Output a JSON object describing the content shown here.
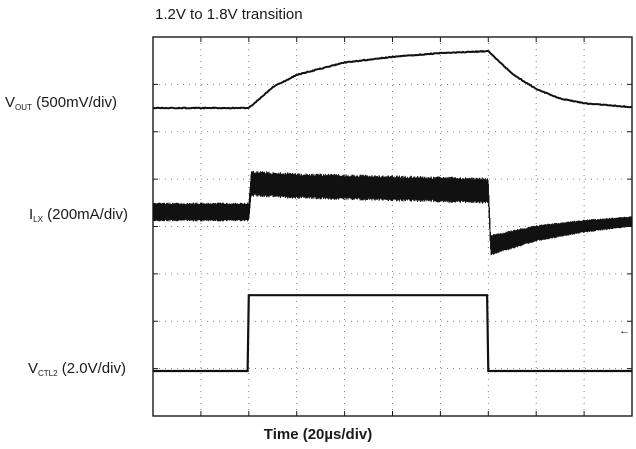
{
  "chart_data": {
    "type": "line",
    "title": "1.2V to 1.8V transition",
    "xlabel": "Time (20µs/div)",
    "ylabel": "",
    "grid": true,
    "divisions": {
      "x": 10,
      "y": 8
    },
    "x": [
      0,
      20,
      40,
      60,
      80,
      100,
      120,
      140,
      160,
      180,
      200
    ],
    "series": [
      {
        "name_main": "V",
        "name_sub": "OUT",
        "name_scale": "(500mV/div)",
        "unit": "V",
        "x": [
          0,
          40,
          50,
          60,
          80,
          100,
          120,
          140,
          150,
          160,
          170,
          180,
          200
        ],
        "values": [
          1.2,
          1.2,
          1.42,
          1.55,
          1.68,
          1.74,
          1.78,
          1.8,
          1.56,
          1.4,
          1.3,
          1.25,
          1.21
        ]
      },
      {
        "name_main": "I",
        "name_sub": "LX",
        "name_scale": "(200mA/div)",
        "unit": "mA",
        "x": [
          0,
          40,
          41,
          60,
          100,
          140,
          141,
          160,
          180,
          200
        ],
        "values": [
          0,
          0,
          120,
          110,
          100,
          90,
          -140,
          -90,
          -60,
          -40
        ],
        "ripple_pp": [
          80,
          80,
          110,
          110,
          110,
          110,
          90,
          70,
          55,
          45
        ]
      },
      {
        "name_main": "V",
        "name_sub": "CTL2",
        "name_scale": "(2.0V/div)",
        "unit": "V",
        "x": [
          0,
          39.5,
          40,
          139.5,
          140,
          200
        ],
        "values": [
          0,
          0,
          3.2,
          3.2,
          0,
          0
        ]
      }
    ],
    "annotations": [
      "←"
    ]
  }
}
